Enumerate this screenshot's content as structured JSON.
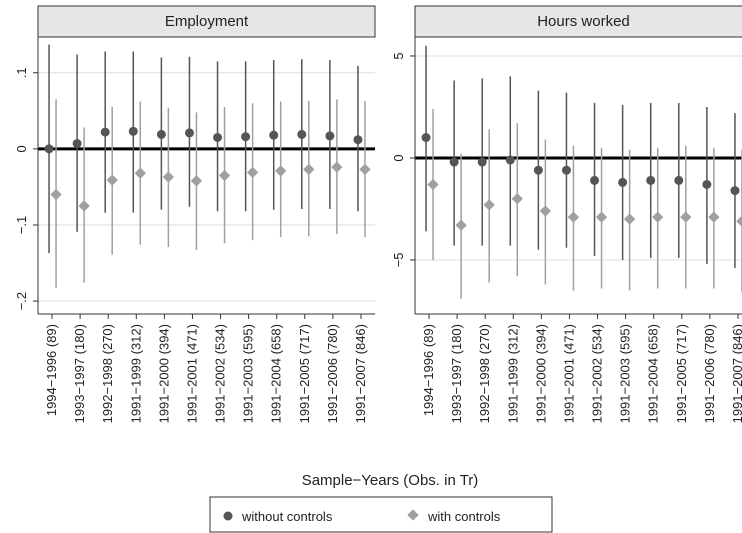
{
  "xlabel": "Sample−Years (Obs. in Tr)",
  "chart_data": [
    {
      "type": "errorbar",
      "title": "Employment",
      "categories": [
        "1994−1996 (89)",
        "1993−1997 (180)",
        "1992−1998 (270)",
        "1991−1999 (312)",
        "1991−2000 (394)",
        "1991−2001 (471)",
        "1991−2002 (534)",
        "1991−2003 (595)",
        "1991−2004 (658)",
        "1991−2005 (717)",
        "1991−2006 (780)",
        "1991−2007 (846)"
      ],
      "ylim": [
        -0.217,
        0.147
      ],
      "yticks": [
        {
          "value": -0.2,
          "label": "−.2"
        },
        {
          "value": -0.1,
          "label": "−.1"
        },
        0,
        {
          "value": 0.1,
          "label": ".1"
        }
      ],
      "grid": true,
      "series": [
        {
          "name": "without controls",
          "color": "#555555",
          "marker": "circle",
          "values": [
            0,
            0.007,
            0.022,
            0.023,
            0.019,
            0.021,
            0.015,
            0.016,
            0.018,
            0.019,
            0.017,
            0.012
          ],
          "lower": [
            -0.137,
            -0.109,
            -0.084,
            -0.084,
            -0.08,
            -0.076,
            -0.082,
            -0.082,
            -0.08,
            -0.079,
            -0.079,
            -0.082
          ],
          "upper": [
            0.137,
            0.124,
            0.128,
            0.128,
            0.12,
            0.121,
            0.115,
            0.115,
            0.117,
            0.118,
            0.117,
            0.109
          ]
        },
        {
          "name": "with controls",
          "color": "#a0a0a0",
          "marker": "diamond",
          "values": [
            -0.06,
            -0.075,
            -0.041,
            -0.032,
            -0.037,
            -0.042,
            -0.035,
            -0.031,
            -0.029,
            -0.027,
            -0.024,
            -0.027
          ],
          "lower": [
            -0.183,
            -0.176,
            -0.139,
            -0.126,
            -0.129,
            -0.133,
            -0.124,
            -0.12,
            -0.116,
            -0.115,
            -0.112,
            -0.116
          ],
          "upper": [
            0.065,
            0.028,
            0.055,
            0.062,
            0.054,
            0.048,
            0.055,
            0.06,
            0.062,
            0.063,
            0.065,
            0.063
          ]
        }
      ]
    },
    {
      "type": "errorbar",
      "title": "Hours worked",
      "categories": [
        "1994−1996 (89)",
        "1993−1997 (180)",
        "1992−1998 (270)",
        "1991−1999 (312)",
        "1991−2000 (394)",
        "1991−2001 (471)",
        "1991−2002 (534)",
        "1991−2003 (595)",
        "1991−2004 (658)",
        "1991−2005 (717)",
        "1991−2006 (780)",
        "1991−2007 (846)"
      ],
      "ylim": [
        -7.65,
        5.93
      ],
      "yticks": [
        {
          "value": -5,
          "label": "−5"
        },
        0,
        5
      ],
      "grid": true,
      "series": [
        {
          "name": "without controls",
          "color": "#555555",
          "marker": "circle",
          "values": [
            1.0,
            -0.2,
            -0.2,
            -0.1,
            -0.6,
            -0.6,
            -1.1,
            -1.2,
            -1.1,
            -1.1,
            -1.3,
            -1.6
          ],
          "lower": [
            -3.6,
            -4.3,
            -4.3,
            -4.3,
            -4.5,
            -4.4,
            -4.8,
            -5.0,
            -4.9,
            -4.9,
            -5.2,
            -5.4
          ],
          "upper": [
            5.5,
            3.8,
            3.9,
            4.0,
            3.3,
            3.2,
            2.7,
            2.6,
            2.7,
            2.7,
            2.5,
            2.2
          ]
        },
        {
          "name": "with controls",
          "color": "#a0a0a0",
          "marker": "diamond",
          "values": [
            -1.3,
            -3.3,
            -2.3,
            -2.0,
            -2.6,
            -2.9,
            -2.9,
            -3.0,
            -2.9,
            -2.9,
            -2.9,
            -3.1
          ],
          "lower": [
            -5.0,
            -6.9,
            -6.1,
            -5.8,
            -6.2,
            -6.5,
            -6.4,
            -6.5,
            -6.4,
            -6.4,
            -6.4,
            -6.6
          ],
          "upper": [
            2.4,
            0.2,
            1.4,
            1.7,
            0.9,
            0.6,
            0.5,
            0.4,
            0.5,
            0.6,
            0.5,
            0.4
          ]
        }
      ]
    }
  ]
}
